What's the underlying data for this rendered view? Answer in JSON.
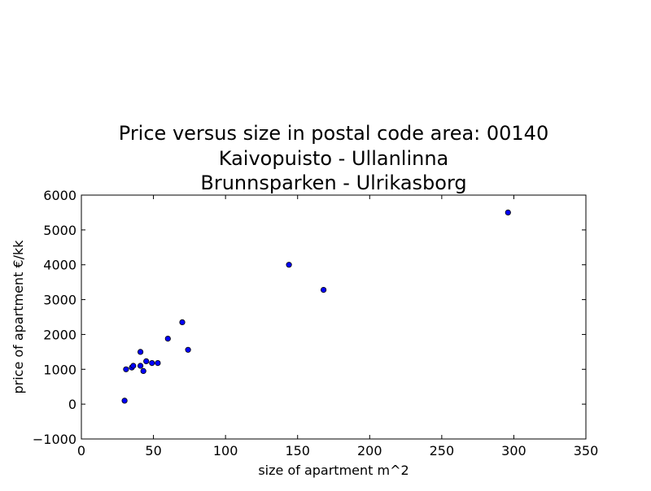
{
  "chart_data": {
    "type": "scatter",
    "title_lines": [
      "Price versus size in postal code area: 00140",
      "Kaivopuisto - Ullanlinna",
      "Brunnsparken - Ulrikasborg"
    ],
    "xlabel": "size of apartment m^2",
    "ylabel": "price of apartment €/kk",
    "xlim": [
      0,
      350
    ],
    "ylim": [
      -1000,
      6000
    ],
    "xticks": [
      0,
      50,
      100,
      150,
      200,
      250,
      300,
      350
    ],
    "yticks": [
      -1000,
      0,
      1000,
      2000,
      3000,
      4000,
      5000,
      6000
    ],
    "xtick_labels": [
      "0",
      "50",
      "100",
      "150",
      "200",
      "250",
      "300",
      "350"
    ],
    "ytick_labels": [
      "−1000",
      "0",
      "1000",
      "2000",
      "3000",
      "4000",
      "5000",
      "6000"
    ],
    "grid": false,
    "marker_color": "#0000ff",
    "points": [
      {
        "x": 30,
        "y": 100
      },
      {
        "x": 31,
        "y": 1000
      },
      {
        "x": 35,
        "y": 1050
      },
      {
        "x": 36,
        "y": 1100
      },
      {
        "x": 41,
        "y": 1500
      },
      {
        "x": 41,
        "y": 1100
      },
      {
        "x": 43,
        "y": 950
      },
      {
        "x": 45,
        "y": 1230
      },
      {
        "x": 49,
        "y": 1180
      },
      {
        "x": 53,
        "y": 1180
      },
      {
        "x": 60,
        "y": 1880
      },
      {
        "x": 70,
        "y": 2350
      },
      {
        "x": 74,
        "y": 1560
      },
      {
        "x": 144,
        "y": 4000
      },
      {
        "x": 168,
        "y": 3280
      },
      {
        "x": 296,
        "y": 5500
      }
    ]
  }
}
